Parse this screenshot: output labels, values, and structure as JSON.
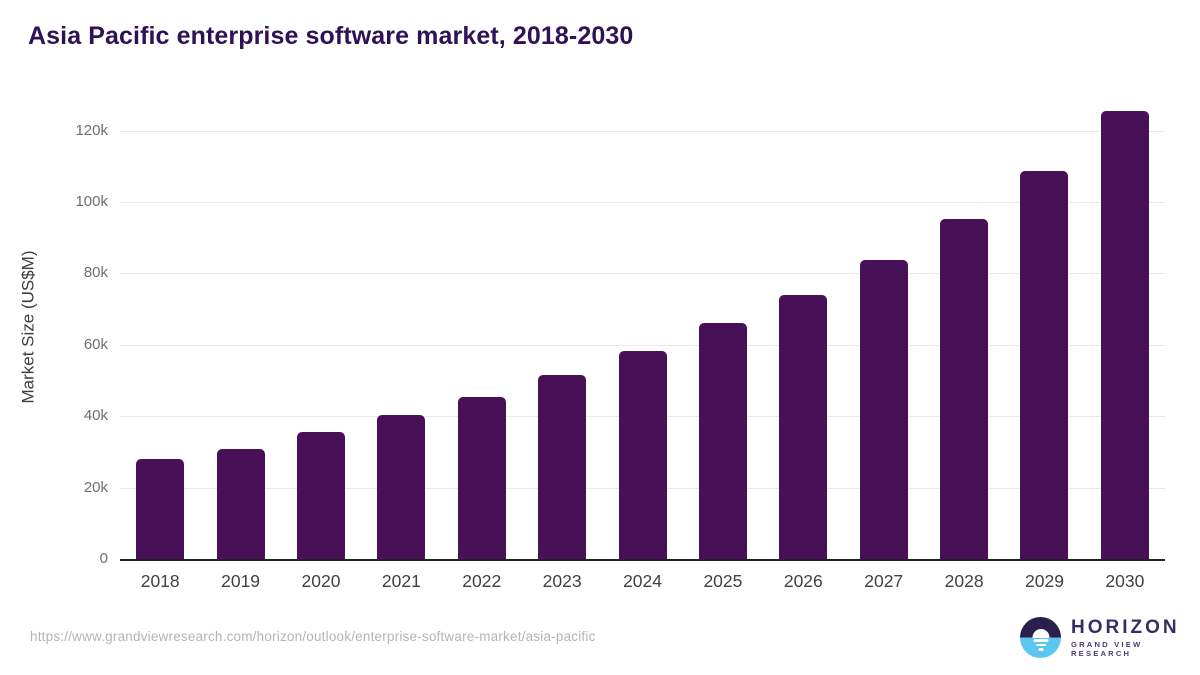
{
  "header": {
    "title": "Asia Pacific enterprise software market, 2018-2030"
  },
  "footer": {
    "source_url": "https://www.grandviewresearch.com/horizon/outlook/enterprise-software-market/asia-pacific",
    "logo_name": "HORIZON",
    "logo_tagline": "GRAND VIEW RESEARCH"
  },
  "colors": {
    "bar": "#481056",
    "title": "#2f1155",
    "gridline": "#e9e9ed",
    "axis_line": "#222222",
    "y_tick_text": "#6e6e6e",
    "x_tick_text": "#414141",
    "url_text": "#b4b4b4",
    "logo_dark": "#2a1e4d",
    "logo_blue": "#5bc6ef",
    "logo_text": "#3b2b63"
  },
  "chart_data": {
    "type": "bar",
    "title": "Asia Pacific enterprise software market, 2018-2030",
    "xlabel": "",
    "ylabel": "Market Size (US$M)",
    "categories": [
      "2018",
      "2019",
      "2020",
      "2021",
      "2022",
      "2023",
      "2024",
      "2025",
      "2026",
      "2027",
      "2028",
      "2029",
      "2030"
    ],
    "values": [
      27900,
      30900,
      35700,
      40400,
      45500,
      51700,
      58400,
      66100,
      74000,
      83900,
      95400,
      108800,
      125400
    ],
    "ylim": [
      0,
      130000
    ],
    "yticks": [
      {
        "value": 0,
        "label": "0"
      },
      {
        "value": 20000,
        "label": "20k"
      },
      {
        "value": 40000,
        "label": "40k"
      },
      {
        "value": 60000,
        "label": "60k"
      },
      {
        "value": 80000,
        "label": "80k"
      },
      {
        "value": 100000,
        "label": "100k"
      },
      {
        "value": 120000,
        "label": "120k"
      }
    ],
    "grid": true,
    "legend": false,
    "bar_corner_radius": 5
  }
}
